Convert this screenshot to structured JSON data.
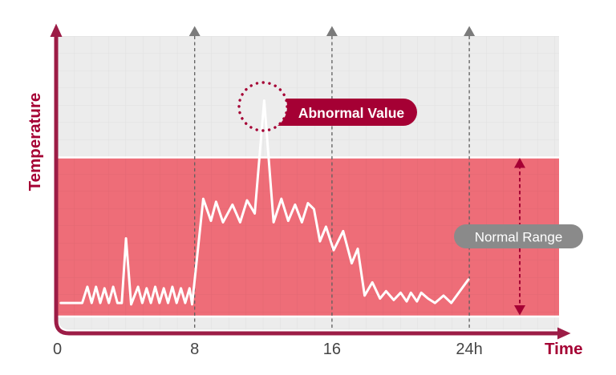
{
  "colors": {
    "brand_red": "#a50034",
    "axis_red": "#9c1c46",
    "band_pink": "#ee6d78",
    "plot_bg_gray": "#ececec",
    "grid_line": "rgba(0,0,0,0.05)",
    "marker_gray": "#7b7b7b",
    "dashed_gray": "#5f5f5f",
    "pill_gray": "#8a8a8a",
    "tick_text": "#454545",
    "line_color": "#ffffff"
  },
  "y_axis": {
    "label": "Temperature"
  },
  "x_axis": {
    "label": "Time",
    "ticks": [
      {
        "label": "0",
        "hour": 0,
        "marker": false
      },
      {
        "label": "8",
        "hour": 8,
        "marker": true
      },
      {
        "label": "16",
        "hour": 16,
        "marker": true
      },
      {
        "label": "24h",
        "hour": 24,
        "marker": true
      }
    ]
  },
  "annotations": {
    "abnormal": {
      "label": "Abnormal Value",
      "hour": 12.05,
      "level": 78
    },
    "normal_range": {
      "label": "Normal Range",
      "min_level": 4.6,
      "max_level": 58.5
    }
  },
  "chart_data": {
    "type": "line",
    "title": "",
    "xlabel": "Time",
    "ylabel": "Temperature",
    "x_unit": "hours",
    "xlim": [
      0,
      29.2
    ],
    "ylim": [
      0,
      100
    ],
    "x_ticks": [
      "0",
      "8",
      "16",
      "24h"
    ],
    "grid": true,
    "legend": "none",
    "normal_range_band": {
      "from_level": 4.6,
      "to_level": 58.5
    },
    "abnormal_point": {
      "hour": 12.05,
      "level": 78
    },
    "series": [
      {
        "name": "temperature",
        "color": "#ffffff",
        "points": [
          [
            0.2,
            9
          ],
          [
            1.45,
            9
          ],
          [
            1.75,
            14.5
          ],
          [
            2.0,
            9
          ],
          [
            2.25,
            14.5
          ],
          [
            2.5,
            9
          ],
          [
            2.75,
            14
          ],
          [
            3.0,
            9
          ],
          [
            3.25,
            14.5
          ],
          [
            3.5,
            9
          ],
          [
            3.75,
            9
          ],
          [
            4.0,
            31
          ],
          [
            4.3,
            8.5
          ],
          [
            4.7,
            14.5
          ],
          [
            4.95,
            9
          ],
          [
            5.2,
            14
          ],
          [
            5.45,
            9
          ],
          [
            5.7,
            14.5
          ],
          [
            5.95,
            9
          ],
          [
            6.2,
            14
          ],
          [
            6.45,
            9
          ],
          [
            6.7,
            14.5
          ],
          [
            6.95,
            9
          ],
          [
            7.2,
            14
          ],
          [
            7.45,
            9
          ],
          [
            7.7,
            14
          ],
          [
            7.85,
            8.5
          ],
          [
            8.5,
            44.5
          ],
          [
            8.95,
            37
          ],
          [
            9.25,
            43.5
          ],
          [
            9.65,
            36.5
          ],
          [
            10.2,
            42.5
          ],
          [
            10.65,
            36.5
          ],
          [
            11.05,
            44
          ],
          [
            11.5,
            39.5
          ],
          [
            12.05,
            78
          ],
          [
            12.6,
            36.5
          ],
          [
            13.05,
            44.5
          ],
          [
            13.45,
            37
          ],
          [
            13.85,
            42.5
          ],
          [
            14.25,
            36.5
          ],
          [
            14.6,
            43
          ],
          [
            14.95,
            41
          ],
          [
            15.3,
            30
          ],
          [
            15.65,
            35
          ],
          [
            16.1,
            27
          ],
          [
            16.65,
            33.5
          ],
          [
            17.15,
            22.5
          ],
          [
            17.5,
            27.5
          ],
          [
            17.9,
            11.5
          ],
          [
            18.35,
            16
          ],
          [
            18.8,
            10.5
          ],
          [
            19.15,
            13
          ],
          [
            19.6,
            10
          ],
          [
            20.0,
            12.5
          ],
          [
            20.35,
            9.5
          ],
          [
            20.6,
            12.5
          ],
          [
            20.95,
            9.5
          ],
          [
            21.2,
            12.5
          ],
          [
            21.6,
            10.5
          ],
          [
            22.0,
            9
          ],
          [
            22.5,
            11.5
          ],
          [
            22.95,
            9
          ],
          [
            23.95,
            17
          ]
        ]
      }
    ]
  }
}
